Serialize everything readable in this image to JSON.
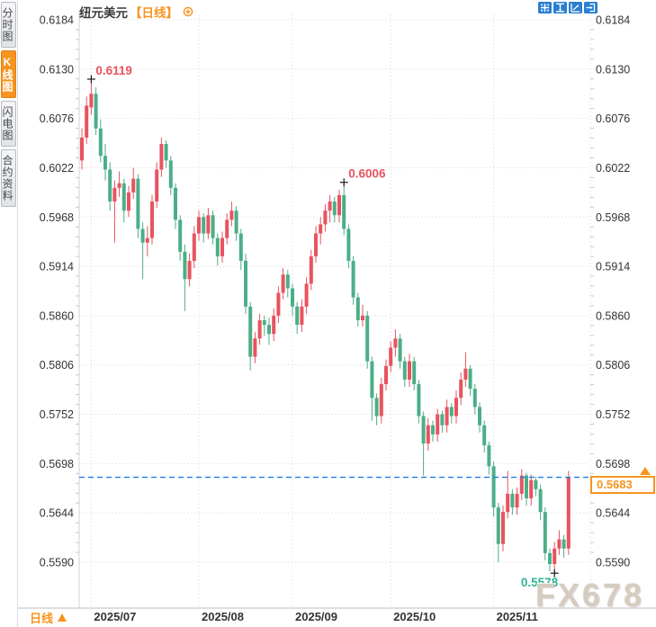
{
  "app": {
    "sidebar": {
      "tabs": [
        {
          "label": "分时图",
          "active": false
        },
        {
          "label": "K线图",
          "active": true
        },
        {
          "label": "闪电图",
          "active": false
        },
        {
          "label": "合约资料",
          "active": false
        }
      ]
    },
    "header": {
      "symbol": "纽元美元",
      "period_tag": "【日线】"
    },
    "toolbar": {
      "icons": [
        "pan-crosshair",
        "y-axis-zoom",
        "x-axis-zoom",
        "exit-chart"
      ]
    },
    "footer": {
      "period_label": "日线",
      "direction_icon": "up-triangle"
    },
    "watermark": "FX678",
    "colors": {
      "up": "#e8535f",
      "down": "#4cae88",
      "accent_orange": "#f7941e",
      "dashed_line": "#1e7ee8",
      "annotation_up": "#e8535f",
      "annotation_down": "#2eb398",
      "grid": "#e2e2e2",
      "axis_text": "#333333"
    }
  },
  "chart_data": {
    "type": "candlestick",
    "symbol": "纽元美元",
    "period": "日线",
    "title": "纽元美元【日线】",
    "grid": true,
    "y_axis_sides": [
      "left",
      "right"
    ],
    "ylim": [
      0.559,
      0.6184
    ],
    "y_ticks": [
      "0.6184",
      "0.6130",
      "0.6076",
      "0.6022",
      "0.5968",
      "0.5914",
      "0.5860",
      "0.5806",
      "0.5752",
      "0.5698",
      "0.5644",
      "0.5590"
    ],
    "x_ticks": [
      {
        "label": "2025/07",
        "index": 2
      },
      {
        "label": "2025/08",
        "index": 25
      },
      {
        "label": "2025/09",
        "index": 45
      },
      {
        "label": "2025/10",
        "index": 66
      },
      {
        "label": "2025/11",
        "index": 88
      }
    ],
    "last_price": "0.5683",
    "reference_line": {
      "price": 0.5683,
      "style": "dashed"
    },
    "annotations": [
      {
        "text": "0.6119",
        "index": 2,
        "price": 0.6119,
        "placement": "above-right",
        "color": "up"
      },
      {
        "text": "0.6006",
        "index": 56,
        "price": 0.6006,
        "placement": "above-right",
        "color": "up"
      },
      {
        "text": "0.5578",
        "index": 101,
        "price": 0.5578,
        "placement": "below-left",
        "color": "down"
      }
    ],
    "candle_format": "[open, high, low, close] — red = up, green = down",
    "candles": [
      [
        0.603,
        0.6065,
        0.602,
        0.6055
      ],
      [
        0.6055,
        0.61,
        0.6048,
        0.609
      ],
      [
        0.6088,
        0.6119,
        0.608,
        0.6103
      ],
      [
        0.6103,
        0.611,
        0.6058,
        0.6065
      ],
      [
        0.6065,
        0.6075,
        0.6028,
        0.6035
      ],
      [
        0.6035,
        0.6048,
        0.6008,
        0.602
      ],
      [
        0.602,
        0.6028,
        0.5975,
        0.5985
      ],
      [
        0.5985,
        0.6008,
        0.594,
        0.6
      ],
      [
        0.6,
        0.6018,
        0.599,
        0.6005
      ],
      [
        0.6005,
        0.601,
        0.5962,
        0.5975
      ],
      [
        0.5975,
        0.6002,
        0.5968,
        0.5995
      ],
      [
        0.5995,
        0.6022,
        0.5988,
        0.601
      ],
      [
        0.601,
        0.6015,
        0.5945,
        0.5955
      ],
      [
        0.5955,
        0.5962,
        0.59,
        0.594
      ],
      [
        0.594,
        0.5958,
        0.5925,
        0.5945
      ],
      [
        0.5945,
        0.5992,
        0.5938,
        0.5985
      ],
      [
        0.5985,
        0.6028,
        0.5978,
        0.602
      ],
      [
        0.602,
        0.6055,
        0.6012,
        0.6048
      ],
      [
        0.6048,
        0.6052,
        0.6022,
        0.603
      ],
      [
        0.603,
        0.6035,
        0.5992,
        0.6
      ],
      [
        0.6,
        0.6005,
        0.5955,
        0.5965
      ],
      [
        0.5965,
        0.597,
        0.592,
        0.593
      ],
      [
        0.593,
        0.5938,
        0.5865,
        0.59
      ],
      [
        0.59,
        0.5928,
        0.5892,
        0.592
      ],
      [
        0.592,
        0.5958,
        0.5912,
        0.595
      ],
      [
        0.595,
        0.5975,
        0.5942,
        0.5968
      ],
      [
        0.5968,
        0.5972,
        0.594,
        0.595
      ],
      [
        0.595,
        0.5978,
        0.5944,
        0.597
      ],
      [
        0.597,
        0.5975,
        0.5938,
        0.5945
      ],
      [
        0.5945,
        0.595,
        0.5915,
        0.5925
      ],
      [
        0.5925,
        0.5952,
        0.5918,
        0.5945
      ],
      [
        0.5945,
        0.5972,
        0.5938,
        0.5965
      ],
      [
        0.5965,
        0.5985,
        0.5958,
        0.5975
      ],
      [
        0.5975,
        0.598,
        0.5942,
        0.595
      ],
      [
        0.595,
        0.5955,
        0.591,
        0.592
      ],
      [
        0.592,
        0.5928,
        0.5862,
        0.587
      ],
      [
        0.587,
        0.5875,
        0.58,
        0.5815
      ],
      [
        0.5815,
        0.5842,
        0.5808,
        0.5835
      ],
      [
        0.5835,
        0.5862,
        0.5828,
        0.5855
      ],
      [
        0.5855,
        0.586,
        0.5838,
        0.585
      ],
      [
        0.585,
        0.5858,
        0.5828,
        0.584
      ],
      [
        0.584,
        0.5868,
        0.5832,
        0.586
      ],
      [
        0.586,
        0.5892,
        0.5852,
        0.5885
      ],
      [
        0.5885,
        0.5912,
        0.5878,
        0.5905
      ],
      [
        0.5905,
        0.591,
        0.588,
        0.589
      ],
      [
        0.589,
        0.5895,
        0.586,
        0.587
      ],
      [
        0.587,
        0.5875,
        0.584,
        0.585
      ],
      [
        0.585,
        0.5878,
        0.5842,
        0.587
      ],
      [
        0.587,
        0.5902,
        0.5862,
        0.5895
      ],
      [
        0.5895,
        0.5932,
        0.5888,
        0.5925
      ],
      [
        0.5925,
        0.5958,
        0.5918,
        0.595
      ],
      [
        0.595,
        0.5968,
        0.5938,
        0.596
      ],
      [
        0.596,
        0.5982,
        0.5952,
        0.5975
      ],
      [
        0.5975,
        0.5992,
        0.5962,
        0.5985
      ],
      [
        0.5985,
        0.599,
        0.5962,
        0.597
      ],
      [
        0.597,
        0.5998,
        0.5962,
        0.5992
      ],
      [
        0.5992,
        0.6006,
        0.5948,
        0.5955
      ],
      [
        0.5955,
        0.596,
        0.5912,
        0.592
      ],
      [
        0.592,
        0.5925,
        0.5872,
        0.588
      ],
      [
        0.588,
        0.5885,
        0.5848,
        0.5855
      ],
      [
        0.5855,
        0.5872,
        0.5848,
        0.586
      ],
      [
        0.586,
        0.5865,
        0.5802,
        0.581
      ],
      [
        0.581,
        0.5815,
        0.5745,
        0.577
      ],
      [
        0.577,
        0.5775,
        0.574,
        0.575
      ],
      [
        0.575,
        0.5792,
        0.5742,
        0.5785
      ],
      [
        0.5785,
        0.5812,
        0.5778,
        0.5805
      ],
      [
        0.5805,
        0.5832,
        0.5798,
        0.5825
      ],
      [
        0.5825,
        0.5845,
        0.5815,
        0.5835
      ],
      [
        0.5835,
        0.584,
        0.5802,
        0.581
      ],
      [
        0.581,
        0.5815,
        0.5782,
        0.579
      ],
      [
        0.579,
        0.5818,
        0.5782,
        0.581
      ],
      [
        0.581,
        0.5815,
        0.5778,
        0.5785
      ],
      [
        0.5785,
        0.579,
        0.5742,
        0.575
      ],
      [
        0.575,
        0.5755,
        0.5685,
        0.572
      ],
      [
        0.572,
        0.5748,
        0.5712,
        0.574
      ],
      [
        0.574,
        0.5745,
        0.5722,
        0.573
      ],
      [
        0.573,
        0.5758,
        0.5722,
        0.5752
      ],
      [
        0.5752,
        0.5756,
        0.5732,
        0.574
      ],
      [
        0.574,
        0.5768,
        0.5732,
        0.576
      ],
      [
        0.576,
        0.5764,
        0.5742,
        0.575
      ],
      [
        0.575,
        0.5778,
        0.5742,
        0.577
      ],
      [
        0.577,
        0.5798,
        0.5762,
        0.579
      ],
      [
        0.579,
        0.582,
        0.5782,
        0.5802
      ],
      [
        0.5802,
        0.5806,
        0.5772,
        0.578
      ],
      [
        0.578,
        0.5785,
        0.5752,
        0.576
      ],
      [
        0.576,
        0.5765,
        0.5732,
        0.574
      ],
      [
        0.574,
        0.5745,
        0.571,
        0.5718
      ],
      [
        0.5718,
        0.5722,
        0.5686,
        0.5695
      ],
      [
        0.5695,
        0.57,
        0.564,
        0.565
      ],
      [
        0.565,
        0.5655,
        0.559,
        0.561
      ],
      [
        0.561,
        0.5652,
        0.5602,
        0.5645
      ],
      [
        0.5645,
        0.569,
        0.5638,
        0.5665
      ],
      [
        0.5665,
        0.567,
        0.5642,
        0.565
      ],
      [
        0.565,
        0.5672,
        0.5642,
        0.5665
      ],
      [
        0.5665,
        0.5692,
        0.5658,
        0.5685
      ],
      [
        0.5685,
        0.5688,
        0.5652,
        0.566
      ],
      [
        0.566,
        0.5686,
        0.5652,
        0.568
      ],
      [
        0.568,
        0.5684,
        0.5662,
        0.567
      ],
      [
        0.567,
        0.5675,
        0.5636,
        0.5645
      ],
      [
        0.5645,
        0.565,
        0.5592,
        0.56
      ],
      [
        0.56,
        0.5605,
        0.558,
        0.5588
      ],
      [
        0.5588,
        0.5612,
        0.5578,
        0.5605
      ],
      [
        0.5605,
        0.5625,
        0.5598,
        0.5615
      ],
      [
        0.5615,
        0.562,
        0.5595,
        0.5605
      ],
      [
        0.5605,
        0.569,
        0.5598,
        0.5683
      ]
    ]
  }
}
